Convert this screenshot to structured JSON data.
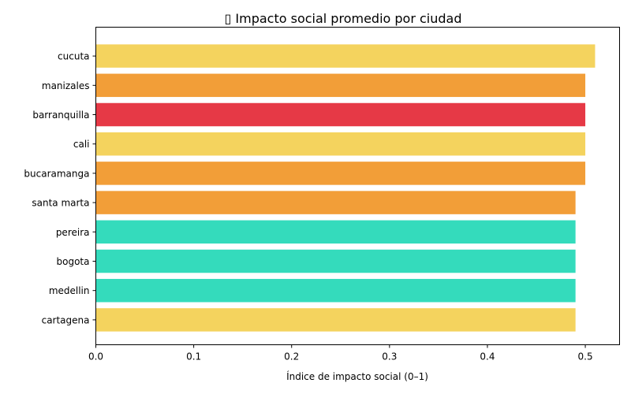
{
  "chart_data": {
    "type": "bar",
    "orientation": "horizontal",
    "title": "▯ Impacto social promedio por ciudad",
    "xlabel": "Índice de impacto social (0–1)",
    "ylabel": "",
    "xlim": [
      0,
      0.535
    ],
    "xticks": [
      0.0,
      0.1,
      0.2,
      0.3,
      0.4,
      0.5
    ],
    "xtick_labels": [
      "0.0",
      "0.1",
      "0.2",
      "0.3",
      "0.4",
      "0.5"
    ],
    "grid": false,
    "categories": [
      "cucuta",
      "manizales",
      "barranquilla",
      "cali",
      "bucaramanga",
      "santa marta",
      "pereira",
      "bogota",
      "medellin",
      "cartagena"
    ],
    "values": [
      0.51,
      0.5,
      0.5,
      0.5,
      0.5,
      0.49,
      0.49,
      0.49,
      0.49,
      0.49
    ],
    "colors": [
      "#f4d35e",
      "#f29e38",
      "#e63946",
      "#f4d35e",
      "#f29e38",
      "#f29e38",
      "#34dbbc",
      "#34dbbc",
      "#34dbbc",
      "#f4d35e"
    ]
  }
}
